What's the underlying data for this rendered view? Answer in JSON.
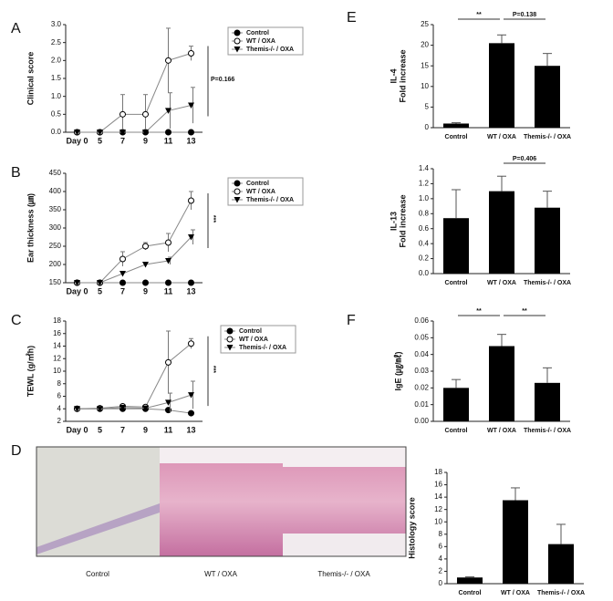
{
  "chart_data": [
    {
      "type": "line",
      "panel": "A",
      "ylabel": [
        "Clinical score"
      ],
      "categories": [
        "Day 0",
        "5",
        "7",
        "9",
        "11",
        "13"
      ],
      "ylim": [
        0,
        3
      ],
      "yticks": [
        {
          "value": 0,
          "label": "0.0"
        },
        0.5,
        {
          "value": 1,
          "label": "1.0"
        },
        1.5,
        {
          "value": 2,
          "label": "2.0"
        },
        2.5,
        {
          "value": 3,
          "label": "3.0"
        }
      ],
      "series": [
        {
          "name": "Control",
          "color": "#000000",
          "marker": "filled-circle",
          "values": [
            0,
            0,
            0,
            0,
            0,
            0
          ]
        },
        {
          "name": "WT / OXA",
          "color": "#000000",
          "marker": "open-circle",
          "values": [
            0,
            0,
            0.5,
            0.5,
            2.0,
            2.2
          ],
          "errors": [
            null,
            null,
            0.55,
            0.55,
            0.9,
            0.2
          ]
        },
        {
          "name": "Themis-/- / OXA",
          "color": "#000000",
          "marker": "triangle-down",
          "values": [
            0,
            0,
            0,
            0,
            0.6,
            0.75
          ],
          "errors": [
            null,
            null,
            null,
            null,
            0.5,
            0.5
          ]
        }
      ],
      "annotations": [
        "P=0.166"
      ]
    },
    {
      "type": "line",
      "panel": "B",
      "ylabel": [
        "Ear thickness (㎛)"
      ],
      "categories": [
        "Day 0",
        "5",
        "7",
        "9",
        "11",
        "13"
      ],
      "ylim": [
        150,
        450
      ],
      "yticks": [
        150,
        200,
        250,
        300,
        350,
        400,
        450
      ],
      "series": [
        {
          "name": "Control",
          "color": "#000000",
          "marker": "filled-circle",
          "values": [
            150,
            150,
            150,
            150,
            150,
            150
          ]
        },
        {
          "name": "WT / OXA",
          "color": "#000000",
          "marker": "open-circle",
          "values": [
            150,
            150,
            215,
            250,
            260,
            375
          ],
          "errors": [
            null,
            null,
            20,
            10,
            25,
            25
          ]
        },
        {
          "name": "Themis-/- / OXA",
          "color": "#000000",
          "marker": "triangle-down",
          "values": [
            150,
            150,
            175,
            200,
            210,
            275
          ],
          "errors": [
            null,
            null,
            null,
            null,
            10,
            20
          ]
        }
      ],
      "annotations": [
        "***"
      ]
    },
    {
      "type": "line",
      "panel": "C",
      "ylabel": [
        "TEWL (g/㎡h)"
      ],
      "categories": [
        "Day 0",
        "5",
        "7",
        "9",
        "11",
        "13"
      ],
      "ylim": [
        2,
        18
      ],
      "yticks": [
        2,
        4,
        6,
        8,
        10,
        12,
        14,
        16,
        18
      ],
      "series": [
        {
          "name": "Control",
          "color": "#000000",
          "marker": "filled-circle",
          "values": [
            4,
            4,
            4,
            4,
            3.8,
            3.3
          ]
        },
        {
          "name": "WT / OXA",
          "color": "#000000",
          "marker": "open-circle",
          "values": [
            4,
            4.1,
            4.4,
            4.3,
            11.4,
            14.4
          ],
          "errors": [
            null,
            null,
            null,
            null,
            5,
            0.8
          ]
        },
        {
          "name": "Themis-/- / OXA",
          "color": "#000000",
          "marker": "triangle-down",
          "values": [
            4,
            4,
            4.2,
            4.1,
            5,
            6.2
          ],
          "errors": [
            null,
            null,
            null,
            null,
            1.5,
            2.2
          ]
        }
      ],
      "annotations": [
        "***"
      ]
    },
    {
      "type": "bar",
      "panel": "D",
      "ylabel": [
        "Histology score"
      ],
      "categories": [
        "Control",
        "WT / OXA",
        "Themis-/- / OXA"
      ],
      "ylim": [
        0,
        18
      ],
      "yticks": [
        0,
        2,
        4,
        6,
        8,
        10,
        12,
        14,
        16,
        18
      ],
      "color": "#000000",
      "values": [
        1,
        13.5,
        6.4
      ],
      "errors": [
        0.1,
        2,
        3.2
      ],
      "annotations": []
    },
    {
      "type": "bar",
      "panel": "E",
      "ylabel": [
        "IL-4",
        "Fold increase"
      ],
      "categories": [
        "Control",
        "WT / OXA",
        "Themis-/- / OXA"
      ],
      "ylim": [
        0,
        25
      ],
      "yticks": [
        0,
        5,
        10,
        15,
        20,
        25
      ],
      "color": "#000000",
      "values": [
        1,
        20.5,
        15
      ],
      "errors": [
        0.2,
        2,
        3
      ],
      "annotations": [
        "**",
        "P=0.138"
      ]
    },
    {
      "type": "bar",
      "ylabel": [
        "IL-13",
        "Fold increase"
      ],
      "categories": [
        "Control",
        "WT / OXA",
        "Themis-/- / OXA"
      ],
      "ylim": [
        0,
        1.4
      ],
      "yticks": [
        {
          "value": 0,
          "label": "0.0"
        },
        0.2,
        0.4,
        0.6,
        0.8,
        {
          "value": 1,
          "label": "1.0"
        },
        1.2,
        1.4
      ],
      "color": "#000000",
      "values": [
        0.74,
        1.1,
        0.88
      ],
      "errors": [
        0.38,
        0.2,
        0.22
      ],
      "annotations": [
        "P=0.406"
      ]
    },
    {
      "type": "bar",
      "panel": "F",
      "ylabel": [
        "IgE (㎍/㎖)"
      ],
      "categories": [
        "Control",
        "WT / OXA",
        "Themis-/- / OXA"
      ],
      "ylim": [
        0,
        0.06
      ],
      "yticks": [
        {
          "value": 0,
          "label": "0.00"
        },
        0.01,
        0.02,
        0.03,
        0.04,
        0.05,
        0.06
      ],
      "color": "#000000",
      "values": [
        0.02,
        0.045,
        0.023
      ],
      "errors": [
        0.005,
        0.007,
        0.009
      ],
      "annotations": [
        "**",
        "**"
      ]
    }
  ],
  "images": {
    "labels": [
      "Control",
      "WT / OXA",
      "Themis-/- / OXA"
    ]
  }
}
